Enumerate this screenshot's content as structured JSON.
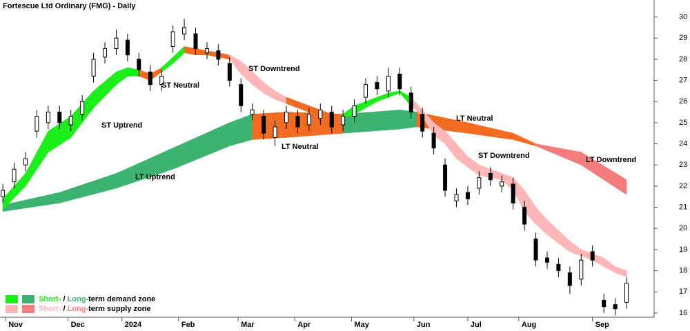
{
  "chart_data": {
    "type": "candlestick",
    "title": "Fortescue Ltd Ordinary (FMG) - Daily",
    "xlim": [
      -1,
      229
    ],
    "ylim": [
      15.8,
      30.8
    ],
    "yticks": [
      16,
      17,
      18,
      19,
      20,
      21,
      22,
      23,
      24,
      25,
      26,
      27,
      28,
      29,
      30
    ],
    "xticks": [
      {
        "value": 1,
        "label": "Nov"
      },
      {
        "value": 23,
        "label": "Dec"
      },
      {
        "value": 42,
        "label": "2024"
      },
      {
        "value": 62,
        "label": "Feb"
      },
      {
        "value": 83,
        "label": "Mar"
      },
      {
        "value": 103,
        "label": "Apr"
      },
      {
        "value": 123,
        "label": "May"
      },
      {
        "value": 145,
        "label": "Jun"
      },
      {
        "value": 164,
        "label": "Jul"
      },
      {
        "value": 182,
        "label": "Aug"
      },
      {
        "value": 208,
        "label": "Sep"
      }
    ],
    "candles": {
      "x": [
        0,
        4,
        8,
        12,
        16,
        20,
        24,
        28,
        32,
        36,
        40,
        44,
        48,
        52,
        56,
        60,
        64,
        68,
        72,
        76,
        80,
        84,
        88,
        92,
        96,
        100,
        104,
        108,
        112,
        116,
        120,
        124,
        128,
        132,
        136,
        140,
        144,
        148,
        152,
        156,
        160,
        164,
        168,
        172,
        176,
        180,
        184,
        188,
        192,
        196,
        200,
        204,
        208,
        212,
        216,
        220
      ],
      "open": [
        21.5,
        22.2,
        23.0,
        24.6,
        25.0,
        25.5,
        24.9,
        25.4,
        27.2,
        28.1,
        28.5,
        28.9,
        28.0,
        27.4,
        26.8,
        28.6,
        29.2,
        29.2,
        28.3,
        28.4,
        27.8,
        26.8,
        25.4,
        25.3,
        24.3,
        25.0,
        25.3,
        24.9,
        25.2,
        25.5,
        24.9,
        25.3,
        26.2,
        26.9,
        26.5,
        27.3,
        26.4,
        25.4,
        24.5,
        23.0,
        21.3,
        21.7,
        21.9,
        22.6,
        22.0,
        22.1,
        21.0,
        19.5,
        18.6,
        18.3,
        17.9,
        17.6,
        18.9,
        16.6,
        16.4,
        16.5
      ],
      "high": [
        22.1,
        23.1,
        23.6,
        25.6,
        25.8,
        25.8,
        25.6,
        26.3,
        28.3,
        28.8,
        29.4,
        29.2,
        28.3,
        27.7,
        27.5,
        29.6,
        29.9,
        29.5,
        28.8,
        28.7,
        28.1,
        27.1,
        25.9,
        25.6,
        25.1,
        25.8,
        25.6,
        25.7,
        25.9,
        25.8,
        25.6,
        26.1,
        27.1,
        27.2,
        27.6,
        27.6,
        26.7,
        25.7,
        24.8,
        23.3,
        21.9,
        22.0,
        22.7,
        22.9,
        22.5,
        22.4,
        21.3,
        19.8,
        18.9,
        18.6,
        18.2,
        18.8,
        19.2,
        16.9,
        16.7,
        17.7
      ],
      "low": [
        21.2,
        21.9,
        22.7,
        24.3,
        24.7,
        24.7,
        24.6,
        25.1,
        26.9,
        27.8,
        28.2,
        27.9,
        27.2,
        26.5,
        26.5,
        28.3,
        28.9,
        28.2,
        28.0,
        27.7,
        26.7,
        25.5,
        25.1,
        24.2,
        23.9,
        24.7,
        24.5,
        24.6,
        24.9,
        24.5,
        24.6,
        25.0,
        25.9,
        26.3,
        26.2,
        26.3,
        25.2,
        24.3,
        23.5,
        21.5,
        21.0,
        21.1,
        21.6,
        22.0,
        21.7,
        20.9,
        19.9,
        18.2,
        18.1,
        17.7,
        16.9,
        17.3,
        18.2,
        16.0,
        15.9,
        16.2
      ],
      "close": [
        21.8,
        22.8,
        23.3,
        25.3,
        25.5,
        25.0,
        25.3,
        26.0,
        28.0,
        28.5,
        29.0,
        28.2,
        27.5,
        26.8,
        27.2,
        29.3,
        29.5,
        28.5,
        28.5,
        28.0,
        27.0,
        25.8,
        25.6,
        24.5,
        24.8,
        25.5,
        24.8,
        25.4,
        25.6,
        24.8,
        25.3,
        25.8,
        26.8,
        26.6,
        27.2,
        26.6,
        25.5,
        24.6,
        23.8,
        21.8,
        21.6,
        21.4,
        22.4,
        22.3,
        22.2,
        21.2,
        20.2,
        18.5,
        18.4,
        18.0,
        17.3,
        18.5,
        18.5,
        16.3,
        16.2,
        17.4
      ]
    },
    "bands": [
      {
        "x": [
          0,
          20,
          40,
          60,
          80,
          88,
          100,
          120,
          140,
          146,
          164,
          180,
          188,
          204,
          220
        ],
        "lower": [
          20.8,
          21.2,
          21.9,
          22.8,
          23.9,
          24.2,
          24.3,
          24.5,
          24.7,
          24.8,
          24.5,
          24.2,
          23.9,
          23.0,
          21.6
        ],
        "upper": [
          21.1,
          21.7,
          22.6,
          23.8,
          25.0,
          25.4,
          25.5,
          25.4,
          25.6,
          25.5,
          25.0,
          24.5,
          24.0,
          23.6,
          22.3
        ],
        "colors": [
          "#3cb371",
          "#3cb371",
          "#3cb371",
          "#3cb371",
          "#3cb371",
          "#f36b21",
          "#f36b21",
          "#3cb371",
          "#3cb371",
          "#f36b21",
          "#f36b21",
          "#f36b21",
          "#f47c7c",
          "#f47c7c"
        ]
      },
      {
        "x": [
          0,
          8,
          16,
          24,
          32,
          40,
          44,
          48,
          52,
          56,
          60,
          64,
          68,
          72,
          76,
          80,
          84,
          88,
          92,
          96,
          100,
          104,
          108,
          112,
          116,
          120,
          124,
          128,
          132,
          136,
          140,
          144,
          148,
          152,
          156,
          160,
          164,
          168,
          172,
          176,
          180,
          184,
          188,
          192,
          196,
          200,
          204,
          208,
          212,
          216,
          220
        ],
        "lower": [
          20.9,
          22.0,
          23.6,
          24.3,
          25.7,
          26.8,
          27.2,
          27.2,
          27.0,
          27.4,
          27.8,
          28.3,
          28.2,
          28.2,
          28.1,
          28.0,
          27.3,
          26.8,
          26.4,
          26.1,
          25.9,
          25.7,
          25.5,
          25.3,
          25.2,
          25.2,
          25.4,
          25.7,
          26.0,
          26.2,
          26.4,
          25.8,
          25.3,
          24.4,
          24.0,
          23.3,
          22.9,
          22.5,
          22.4,
          22.3,
          21.8,
          20.8,
          20.2,
          19.7,
          19.3,
          18.9,
          18.7,
          18.5,
          18.2,
          17.9,
          17.7
        ],
        "upper": [
          21.4,
          22.6,
          24.6,
          25.3,
          26.5,
          27.4,
          27.6,
          27.5,
          27.3,
          27.6,
          28.1,
          28.6,
          28.5,
          28.4,
          28.3,
          28.2,
          27.9,
          27.4,
          26.9,
          26.5,
          26.2,
          26.0,
          25.8,
          25.6,
          25.4,
          25.4,
          25.8,
          26.0,
          26.2,
          26.4,
          26.5,
          26.2,
          25.6,
          25.0,
          24.6,
          24.0,
          23.4,
          23.0,
          22.8,
          22.6,
          22.4,
          21.8,
          21.0,
          20.4,
          19.9,
          19.4,
          19.0,
          18.8,
          18.6,
          18.2,
          18.0
        ],
        "colors": [
          "#1aef1a",
          "#1aef1a",
          "#1aef1a",
          "#1aef1a",
          "#1aef1a",
          "#1aef1a",
          "#1aef1a",
          "#f36b21",
          "#f36b21",
          "#1aef1a",
          "#1aef1a",
          "#f36b21",
          "#f36b21",
          "#f36b21",
          "#f36b21",
          "#ffb6b6",
          "#ffb6b6",
          "#ffb6b6",
          "#ffb6b6",
          "#ffb6b6",
          "#f36b21",
          "#f36b21",
          "#f36b21",
          "#f36b21",
          "#f36b21",
          "#1aef1a",
          "#1aef1a",
          "#1aef1a",
          "#1aef1a",
          "#1aef1a",
          "#1aef1a",
          "#ffb6b6",
          "#ffb6b6",
          "#ffb6b6",
          "#ffb6b6",
          "#ffb6b6",
          "#ffb6b6",
          "#ffb6b6",
          "#ffb6b6",
          "#ffb6b6",
          "#ffb6b6",
          "#ffb6b6",
          "#ffb6b6",
          "#ffb6b6",
          "#ffb6b6",
          "#ffb6b6",
          "#ffb6b6",
          "#ffb6b6",
          "#ffb6b6",
          "#ffb6b6"
        ]
      }
    ],
    "annotations": [
      "ST Uptrend",
      "ST Neutral",
      "ST Downtrend",
      "LT Uptrend",
      "LT Neutral",
      "LT Neutral",
      "ST Downtrend",
      "LT Downtrend"
    ],
    "legend_position": "lower left",
    "legend": [
      {
        "colors": [
          "#1aef1a",
          "#3cb371"
        ],
        "parts": [
          "Short-",
          " / ",
          "Long-",
          "term demand zone"
        ]
      },
      {
        "colors": [
          "#ffb6b6",
          "#f47c7c"
        ],
        "parts": [
          "Short-",
          " / ",
          "Long-",
          "term supply zone"
        ]
      }
    ]
  }
}
